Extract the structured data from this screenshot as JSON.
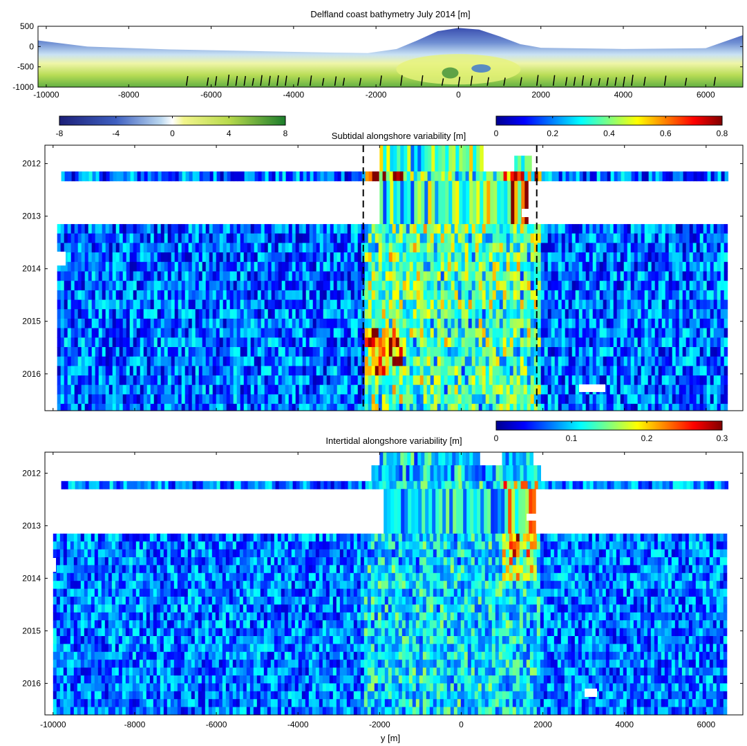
{
  "chart_data": [
    {
      "type": "heatmap",
      "title": "Delfland coast bathymetry July 2014 [m]",
      "xlim": [
        -10200,
        6900
      ],
      "ylim": [
        -1000,
        500
      ],
      "x_ticks": [
        "-10000",
        "-8000",
        "-6000",
        "-4000",
        "-2000",
        "0",
        "2000",
        "4000",
        "6000"
      ],
      "y_ticks": [
        "500",
        "0",
        "-500",
        "-1000"
      ],
      "colorbar": {
        "ticks": [
          "-8",
          "-4",
          "0",
          "4",
          "8"
        ],
        "range": [
          -8,
          8
        ],
        "colormap": "blue-white-yellow-green"
      },
      "profile": {
        "y": [
          -10200,
          -9000,
          -7000,
          -5000,
          -3000,
          -2200,
          -1500,
          -1000,
          -500,
          0,
          500,
          1000,
          1500,
          2000,
          4000,
          6000,
          6900
        ],
        "onshore_edge": [
          150,
          0,
          -70,
          -110,
          -150,
          -160,
          -60,
          150,
          380,
          460,
          420,
          250,
          60,
          -30,
          -60,
          -40,
          280
        ]
      },
      "transect_markers_y": [
        -6600,
        -6100,
        -5900,
        -5600,
        -5400,
        -5200,
        -5000,
        -4800,
        -4600,
        -4400,
        -4200,
        -3900,
        -3600,
        -3300,
        -3000,
        -2800,
        -2400,
        -1900,
        -1400,
        -900,
        -400,
        0,
        300,
        700,
        1100,
        1500,
        1900,
        2300,
        2600,
        2800,
        3000,
        3200,
        3400,
        3600,
        3800,
        4000,
        4200,
        4500,
        5000,
        5500,
        6200
      ]
    },
    {
      "type": "heatmap",
      "title": "Subtidal alongshore variability [m]",
      "x_ticks": [
        "-10000",
        "-8000",
        "-6000",
        "-4000",
        "-2000",
        "0",
        "2000",
        "4000",
        "6000"
      ],
      "y_ticks": [
        "2012",
        "2013",
        "2014",
        "2015",
        "2016"
      ],
      "ylim": [
        2011.65,
        2016.7
      ],
      "colorbar": {
        "ticks": [
          "0",
          "0.2",
          "0.4",
          "0.6",
          "0.8"
        ],
        "range": [
          0,
          0.8
        ],
        "colormap": "jet"
      },
      "dashed_lines_y": [
        -2400,
        1850
      ],
      "survey_times": [
        2011.65,
        2011.8,
        2011.95,
        2012.15,
        2012.27,
        2012.45,
        2012.62,
        2012.82,
        2013.15,
        2013.32,
        2013.5,
        2013.72,
        2013.9,
        2014.1,
        2014.3,
        2014.5,
        2014.7,
        2014.92,
        2015.05,
        2015.2,
        2015.38,
        2015.55,
        2015.72,
        2015.9,
        2016.05,
        2016.2,
        2016.38,
        2016.55,
        2016.7
      ]
    },
    {
      "type": "heatmap",
      "title": "Intertidal alongshore variability [m]",
      "xlabel": "y [m]",
      "x_ticks": [
        "-10000",
        "-8000",
        "-6000",
        "-4000",
        "-2000",
        "0",
        "2000",
        "4000",
        "6000"
      ],
      "y_ticks": [
        "2012",
        "2013",
        "2014",
        "2015",
        "2016"
      ],
      "ylim": [
        2011.6,
        2016.6
      ],
      "colorbar": {
        "ticks": [
          "0",
          "0.1",
          "0.2",
          "0.3"
        ],
        "range": [
          0,
          0.3
        ],
        "colormap": "jet"
      },
      "survey_times": [
        2011.6,
        2011.72,
        2011.85,
        2011.98,
        2012.15,
        2012.28,
        2012.45,
        2012.62,
        2012.8,
        2013.0,
        2013.15,
        2013.3,
        2013.45,
        2013.6,
        2013.75,
        2013.9,
        2014.05,
        2014.2,
        2014.35,
        2014.5,
        2014.65,
        2014.8,
        2014.95,
        2015.1,
        2015.25,
        2015.4,
        2015.55,
        2015.7,
        2015.85,
        2016.0,
        2016.15,
        2016.3,
        2016.45,
        2016.6
      ]
    }
  ]
}
